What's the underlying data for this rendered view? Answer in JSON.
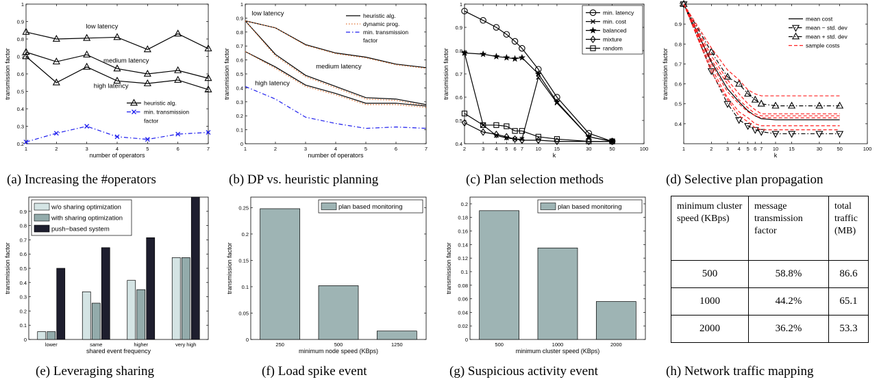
{
  "captions": {
    "a": "(a) Increasing the #operators",
    "b": "(b) DP vs. heuristic planning",
    "c": "(c) Plan selection methods",
    "d": "(d) Selective plan propagation",
    "e": "(e) Leveraging sharing",
    "f": "(f) Load spike event",
    "g": "(g) Suspicious activity event",
    "h": "(h) Network traffic mapping"
  },
  "chart_data": [
    {
      "id": "a",
      "type": "line",
      "xlabel": "number of operators",
      "ylabel": "transmission factor",
      "xlim": [
        1,
        7
      ],
      "ylim": [
        0.2,
        1
      ],
      "xticks": [
        1,
        2,
        3,
        4,
        5,
        6,
        7
      ],
      "yticks": [
        0.2,
        0.3,
        0.4,
        0.5,
        0.6,
        0.7,
        0.8,
        0.9,
        1
      ],
      "x": [
        1,
        2,
        3,
        4,
        5,
        6,
        7
      ],
      "series": [
        {
          "name": "heuristic alg.",
          "values": [
            0.84,
            0.8,
            0.805,
            0.81,
            0.74,
            0.83,
            0.745
          ],
          "color": "#000000",
          "marker": "triangle"
        },
        {
          "values": [
            0.725,
            0.67,
            0.71,
            0.63,
            0.6,
            0.62,
            0.575
          ],
          "color": "#000000",
          "marker": "triangle"
        },
        {
          "values": [
            0.7,
            0.55,
            0.64,
            0.56,
            0.545,
            0.565,
            0.51
          ],
          "color": "#000000",
          "marker": "triangle"
        },
        {
          "name": "min. transmission factor",
          "values": [
            0.21,
            0.26,
            0.3,
            0.24,
            0.225,
            0.255,
            0.265
          ],
          "color": "#1a1aee",
          "marker": "x",
          "dash": "dashdot"
        }
      ],
      "annotations": [
        {
          "text": "low latency",
          "x": 3.5,
          "y": 0.86
        },
        {
          "text": "medium latency",
          "x": 4.3,
          "y": 0.665
        },
        {
          "text": "high latency",
          "x": 3.8,
          "y": 0.52
        }
      ],
      "legend": "bottom-right"
    },
    {
      "id": "b",
      "type": "line",
      "xlabel": "number of operators",
      "ylabel": "transmission factor",
      "xlim": [
        1,
        7
      ],
      "ylim": [
        0,
        1
      ],
      "xticks": [
        1,
        2,
        3,
        4,
        5,
        6,
        7
      ],
      "yticks": [
        0,
        0.1,
        0.2,
        0.3,
        0.4,
        0.5,
        0.6,
        0.7,
        0.8,
        0.9,
        1
      ],
      "x": [
        1,
        2,
        3,
        4,
        5,
        6,
        7
      ],
      "series": [
        {
          "name": "heuristic alg.",
          "values": [
            0.88,
            0.83,
            0.71,
            0.65,
            0.62,
            0.57,
            0.545
          ],
          "color": "#000000"
        },
        {
          "name": "dynamic prog.",
          "values": [
            0.88,
            0.83,
            0.705,
            0.645,
            0.615,
            0.565,
            0.54
          ],
          "color": "#e07030",
          "dash": "dot"
        },
        {
          "values": [
            0.88,
            0.64,
            0.49,
            0.41,
            0.33,
            0.32,
            0.28
          ],
          "color": "#000000"
        },
        {
          "values": [
            0.88,
            0.63,
            0.48,
            0.4,
            0.32,
            0.31,
            0.27
          ],
          "color": "#e07030",
          "dash": "dot"
        },
        {
          "values": [
            0.66,
            0.55,
            0.42,
            0.36,
            0.29,
            0.29,
            0.27
          ],
          "color": "#000000"
        },
        {
          "values": [
            0.66,
            0.54,
            0.41,
            0.35,
            0.28,
            0.28,
            0.26
          ],
          "color": "#e07030",
          "dash": "dot"
        },
        {
          "name": "min. transmission factor",
          "values": [
            0.41,
            0.32,
            0.19,
            0.145,
            0.11,
            0.12,
            0.11
          ],
          "color": "#1a1aee",
          "dash": "dashdot"
        }
      ],
      "annotations": [
        {
          "text": "low latency",
          "x": 1.75,
          "y": 0.92
        },
        {
          "text": "medium latency",
          "x": 4.1,
          "y": 0.54
        },
        {
          "text": "high latency",
          "x": 1.9,
          "y": 0.42
        }
      ],
      "legend": "top-right"
    },
    {
      "id": "c",
      "type": "line",
      "xscale": "log",
      "xlabel": "k",
      "ylabel": "transmission factor",
      "xlim": [
        2,
        100
      ],
      "ylim": [
        0.4,
        1
      ],
      "xticks": [
        2,
        3,
        4,
        5,
        6,
        7,
        10,
        15,
        30,
        50,
        100
      ],
      "yticks": [
        0.4,
        0.5,
        0.6,
        0.7,
        0.8,
        0.9,
        1
      ],
      "x": [
        2,
        3,
        4,
        5,
        6,
        7,
        10,
        15,
        30,
        50
      ],
      "series": [
        {
          "name": "min. latency",
          "values": [
            0.97,
            0.93,
            0.9,
            0.87,
            0.84,
            0.81,
            0.72,
            0.6,
            0.445,
            0.41
          ],
          "marker": "circle"
        },
        {
          "name": "min. cost",
          "values": [
            0.79,
            0.48,
            0.435,
            0.425,
            0.42,
            0.42,
            0.685,
            0.575,
            0.43,
            0.41
          ],
          "marker": "x"
        },
        {
          "name": "balanced",
          "values": [
            0.79,
            0.785,
            0.775,
            0.77,
            0.765,
            0.77,
            0.7,
            0.58,
            0.43,
            0.41
          ],
          "marker": "star"
        },
        {
          "name": "mixture",
          "values": [
            0.49,
            0.45,
            0.44,
            0.43,
            0.42,
            0.415,
            0.415,
            0.41,
            0.41,
            0.41
          ],
          "marker": "diamond"
        },
        {
          "name": "random",
          "values": [
            0.53,
            0.48,
            0.48,
            0.475,
            0.455,
            0.455,
            0.43,
            0.42,
            0.41,
            0.41
          ],
          "marker": "square"
        }
      ],
      "legend": "top-right"
    },
    {
      "id": "d",
      "type": "line",
      "xscale": "log",
      "xlabel": "k",
      "ylabel": "transmission factor",
      "xlim": [
        1,
        100
      ],
      "ylim": [
        0.3,
        1
      ],
      "xticks": [
        1,
        2,
        3,
        4,
        5,
        6,
        7,
        10,
        15,
        30,
        50,
        100
      ],
      "yticks": [
        0.4,
        0.5,
        0.6,
        0.7,
        0.8,
        0.9,
        1
      ],
      "x": [
        1,
        2,
        3,
        4,
        5,
        6,
        7,
        10,
        15,
        30,
        50
      ],
      "series": [
        {
          "name": "mean cost",
          "values": [
            1.0,
            0.71,
            0.575,
            0.51,
            0.465,
            0.44,
            0.425,
            0.42,
            0.42,
            0.42,
            0.42
          ],
          "color": "#000000"
        },
        {
          "name": "mean − std. dev",
          "values": [
            1.0,
            0.665,
            0.5,
            0.42,
            0.39,
            0.37,
            0.36,
            0.35,
            0.35,
            0.35,
            0.35
          ],
          "color": "#000000",
          "marker": "triangle-down",
          "dash": "dashdot"
        },
        {
          "name": "mean + std. dev",
          "values": [
            1.0,
            0.76,
            0.635,
            0.6,
            0.55,
            0.52,
            0.5,
            0.49,
            0.49,
            0.49,
            0.49
          ],
          "color": "#000000",
          "marker": "triangle",
          "dash": "dashdot"
        },
        {
          "name": "sample costs",
          "values": [
            1.0,
            0.7,
            0.56,
            0.5,
            0.46,
            0.44,
            0.43,
            0.43,
            0.43,
            0.43,
            0.43
          ],
          "color": "#ff2020",
          "dash": "dash"
        },
        {
          "values": [
            1.0,
            0.74,
            0.62,
            0.55,
            0.5,
            0.47,
            0.45,
            0.45,
            0.45,
            0.45,
            0.45
          ],
          "color": "#ff2020",
          "dash": "dash"
        },
        {
          "values": [
            1.0,
            0.68,
            0.53,
            0.46,
            0.43,
            0.4,
            0.39,
            0.39,
            0.39,
            0.39,
            0.39
          ],
          "color": "#ff2020",
          "dash": "dash"
        },
        {
          "values": [
            1.0,
            0.78,
            0.67,
            0.62,
            0.57,
            0.55,
            0.54,
            0.54,
            0.54,
            0.54,
            0.54
          ],
          "color": "#ff2020",
          "dash": "dash"
        },
        {
          "values": [
            1.0,
            0.72,
            0.6,
            0.52,
            0.48,
            0.45,
            0.44,
            0.44,
            0.44,
            0.44,
            0.44
          ],
          "color": "#ff2020",
          "dash": "dash"
        },
        {
          "values": [
            1.0,
            0.66,
            0.52,
            0.44,
            0.41,
            0.38,
            0.37,
            0.37,
            0.37,
            0.37,
            0.37
          ],
          "color": "#ff2020",
          "dash": "dash"
        }
      ],
      "legend": "top-right"
    },
    {
      "id": "e",
      "type": "bar",
      "xlabel": "shared event frequency",
      "ylabel": "transmission factor",
      "ylim": [
        0,
        1
      ],
      "yticks": [
        0,
        0.1,
        0.2,
        0.3,
        0.4,
        0.5,
        0.6,
        0.7,
        0.8,
        0.9
      ],
      "categories": [
        "lower",
        "same",
        "higher",
        "very high"
      ],
      "series": [
        {
          "name": "w/o sharing optimization",
          "values": [
            0.055,
            0.335,
            0.415,
            0.575
          ],
          "color": "#d4e4e4"
        },
        {
          "name": "with sharing optimization",
          "values": [
            0.055,
            0.255,
            0.35,
            0.575
          ],
          "color": "#93abab"
        },
        {
          "name": "push−based system",
          "values": [
            0.5,
            0.645,
            0.715,
            1.0
          ],
          "color": "#1e1e2e"
        }
      ],
      "legend": "top-left"
    },
    {
      "id": "f",
      "type": "bar",
      "xlabel": "minimum node speed (KBps)",
      "ylabel": "transmission factor",
      "ylim": [
        0,
        0.27
      ],
      "yticks": [
        0,
        0.05,
        0.1,
        0.15,
        0.2,
        0.25
      ],
      "categories": [
        "250",
        "500",
        "1250"
      ],
      "series": [
        {
          "name": "plan based monitoring",
          "values": [
            0.248,
            0.102,
            0.016
          ],
          "color": "#9eb4b4"
        }
      ],
      "legend": "top-right"
    },
    {
      "id": "g",
      "type": "bar",
      "xlabel": "minimum cluster speed (KBps)",
      "ylabel": "transmission factor",
      "ylim": [
        0,
        0.21
      ],
      "yticks": [
        0,
        0.02,
        0.04,
        0.06,
        0.08,
        0.1,
        0.12,
        0.14,
        0.16,
        0.18,
        0.2
      ],
      "categories": [
        "500",
        "1000",
        "2000"
      ],
      "series": [
        {
          "name": "plan based monitoring",
          "values": [
            0.19,
            0.135,
            0.056
          ],
          "color": "#9eb4b4"
        }
      ],
      "legend": "top-right"
    },
    {
      "id": "h",
      "type": "table",
      "headers": [
        "minimum cluster speed (KBps)",
        "message transmission factor",
        "total traffic (MB)"
      ],
      "rows": [
        [
          "500",
          "58.8%",
          "86.6"
        ],
        [
          "1000",
          "44.2%",
          "65.1"
        ],
        [
          "2000",
          "36.2%",
          "53.3"
        ]
      ]
    }
  ]
}
